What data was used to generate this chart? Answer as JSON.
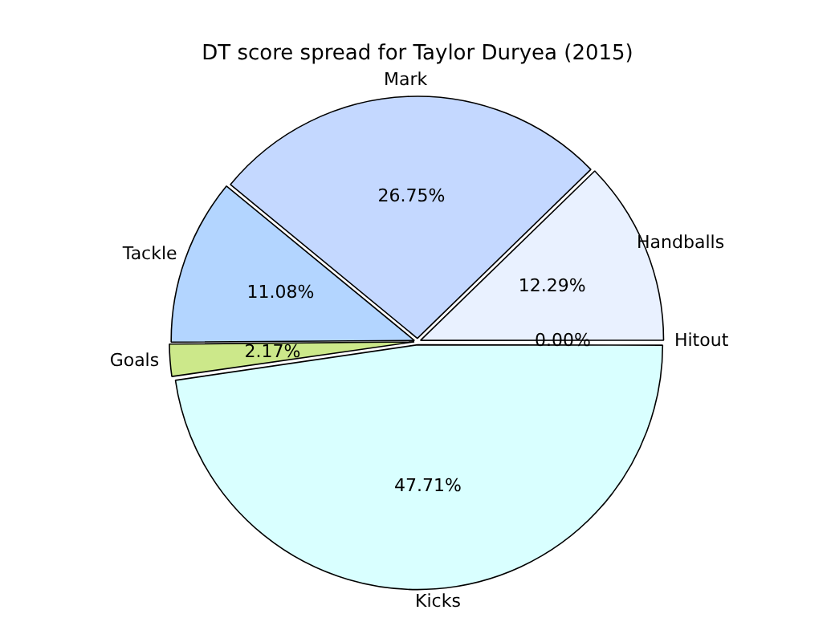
{
  "chart_data": {
    "type": "pie",
    "title": "DT score spread for Taylor Duryea (2015)",
    "categories": [
      "Kicks",
      "Goals",
      "Tackle",
      "Mark",
      "Handballs",
      "Hitout"
    ],
    "values": [
      47.71,
      2.17,
      11.08,
      26.75,
      12.29,
      0.0
    ],
    "colors": [
      "#d9ffff",
      "#cce88a",
      "#b3d5ff",
      "#c4d8ff",
      "#e9f1ff",
      "#e0e0ff"
    ],
    "value_labels": [
      "47.71%",
      "2.17%",
      "11.08%",
      "26.75%",
      "12.29%",
      "0.00%"
    ],
    "legend": false
  }
}
